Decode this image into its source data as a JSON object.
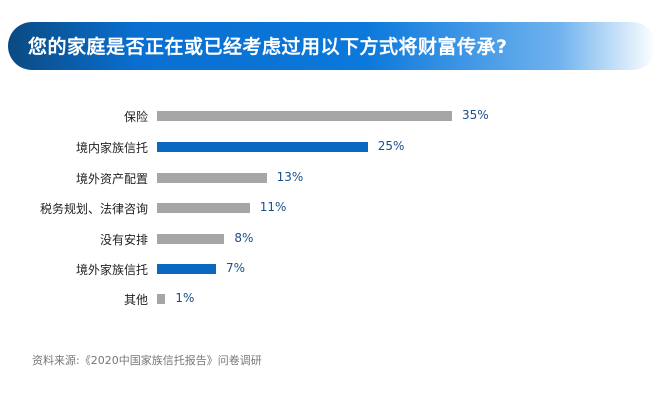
{
  "chart_data": {
    "type": "bar",
    "orientation": "horizontal",
    "title": "您的家庭是否正在或已经考虑过用以下方式将财富传承?",
    "categories": [
      "保险",
      "境内家族信托",
      "境外资产配置",
      "税务规划、法律咨询",
      "没有安排",
      "境外家族信托",
      "其他"
    ],
    "values": [
      35,
      25,
      13,
      11,
      8,
      7,
      1
    ],
    "value_labels": [
      "35%",
      "25%",
      "13%",
      "11%",
      "8%",
      "7%",
      "1%"
    ],
    "highlight": [
      false,
      true,
      false,
      false,
      false,
      true,
      false
    ],
    "colors": {
      "default": "#a6a6a6",
      "highlight": "#0a67c2"
    },
    "xlim": [
      0,
      35
    ],
    "source": "资料来源:《2020中国家族信托报告》问卷调研"
  }
}
